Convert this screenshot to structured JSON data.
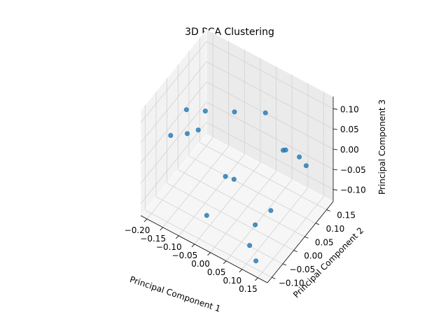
{
  "chart_data": {
    "type": "scatter",
    "title": "3D PCA Clustering",
    "xlabel": "Principal Component 1",
    "ylabel": "Principal Component 2",
    "zlabel": "Principal Component 3",
    "x_ticks": [
      "−0.20",
      "−0.15",
      "−0.10",
      "−0.05",
      "0.00",
      "0.05",
      "0.10",
      "0.15"
    ],
    "y_ticks": [
      "−0.10",
      "−0.05",
      "0.00",
      "0.05",
      "0.10",
      "0.15"
    ],
    "z_ticks": [
      "−0.10",
      "−0.05",
      "0.00",
      "0.05",
      "0.10"
    ],
    "xlim": [
      -0.22,
      0.18
    ],
    "ylim": [
      -0.12,
      0.18
    ],
    "zlim": [
      -0.13,
      0.13
    ],
    "grid": true,
    "marker_color": "#1f77b4",
    "points": [
      [
        -0.2,
        0.06,
        0.02
      ],
      [
        -0.16,
        -0.07,
        0.06
      ],
      [
        0.13,
        -0.1,
        -0.11
      ],
      [
        0.11,
        -0.1,
        -0.08
      ],
      [
        -0.08,
        -0.06,
        0.1
      ],
      [
        -0.06,
        -0.05,
        -0.11
      ],
      [
        -0.05,
        0.06,
        -0.09
      ],
      [
        0.08,
        0.04,
        -0.1
      ],
      [
        0.17,
        0.04,
        0.07
      ],
      [
        0.15,
        0.1,
        0.0
      ],
      [
        -0.17,
        0.02,
        0.0
      ],
      [
        0.1,
        -0.06,
        -0.06
      ],
      [
        -0.12,
        0.03,
        0.07
      ],
      [
        0.05,
        0.14,
        -0.03
      ],
      [
        -0.09,
        0.12,
        0.02
      ],
      [
        0.02,
        -0.08,
        0.04
      ],
      [
        0.12,
        0.05,
        0.06
      ],
      [
        -0.02,
        0.16,
        0.02
      ]
    ]
  }
}
